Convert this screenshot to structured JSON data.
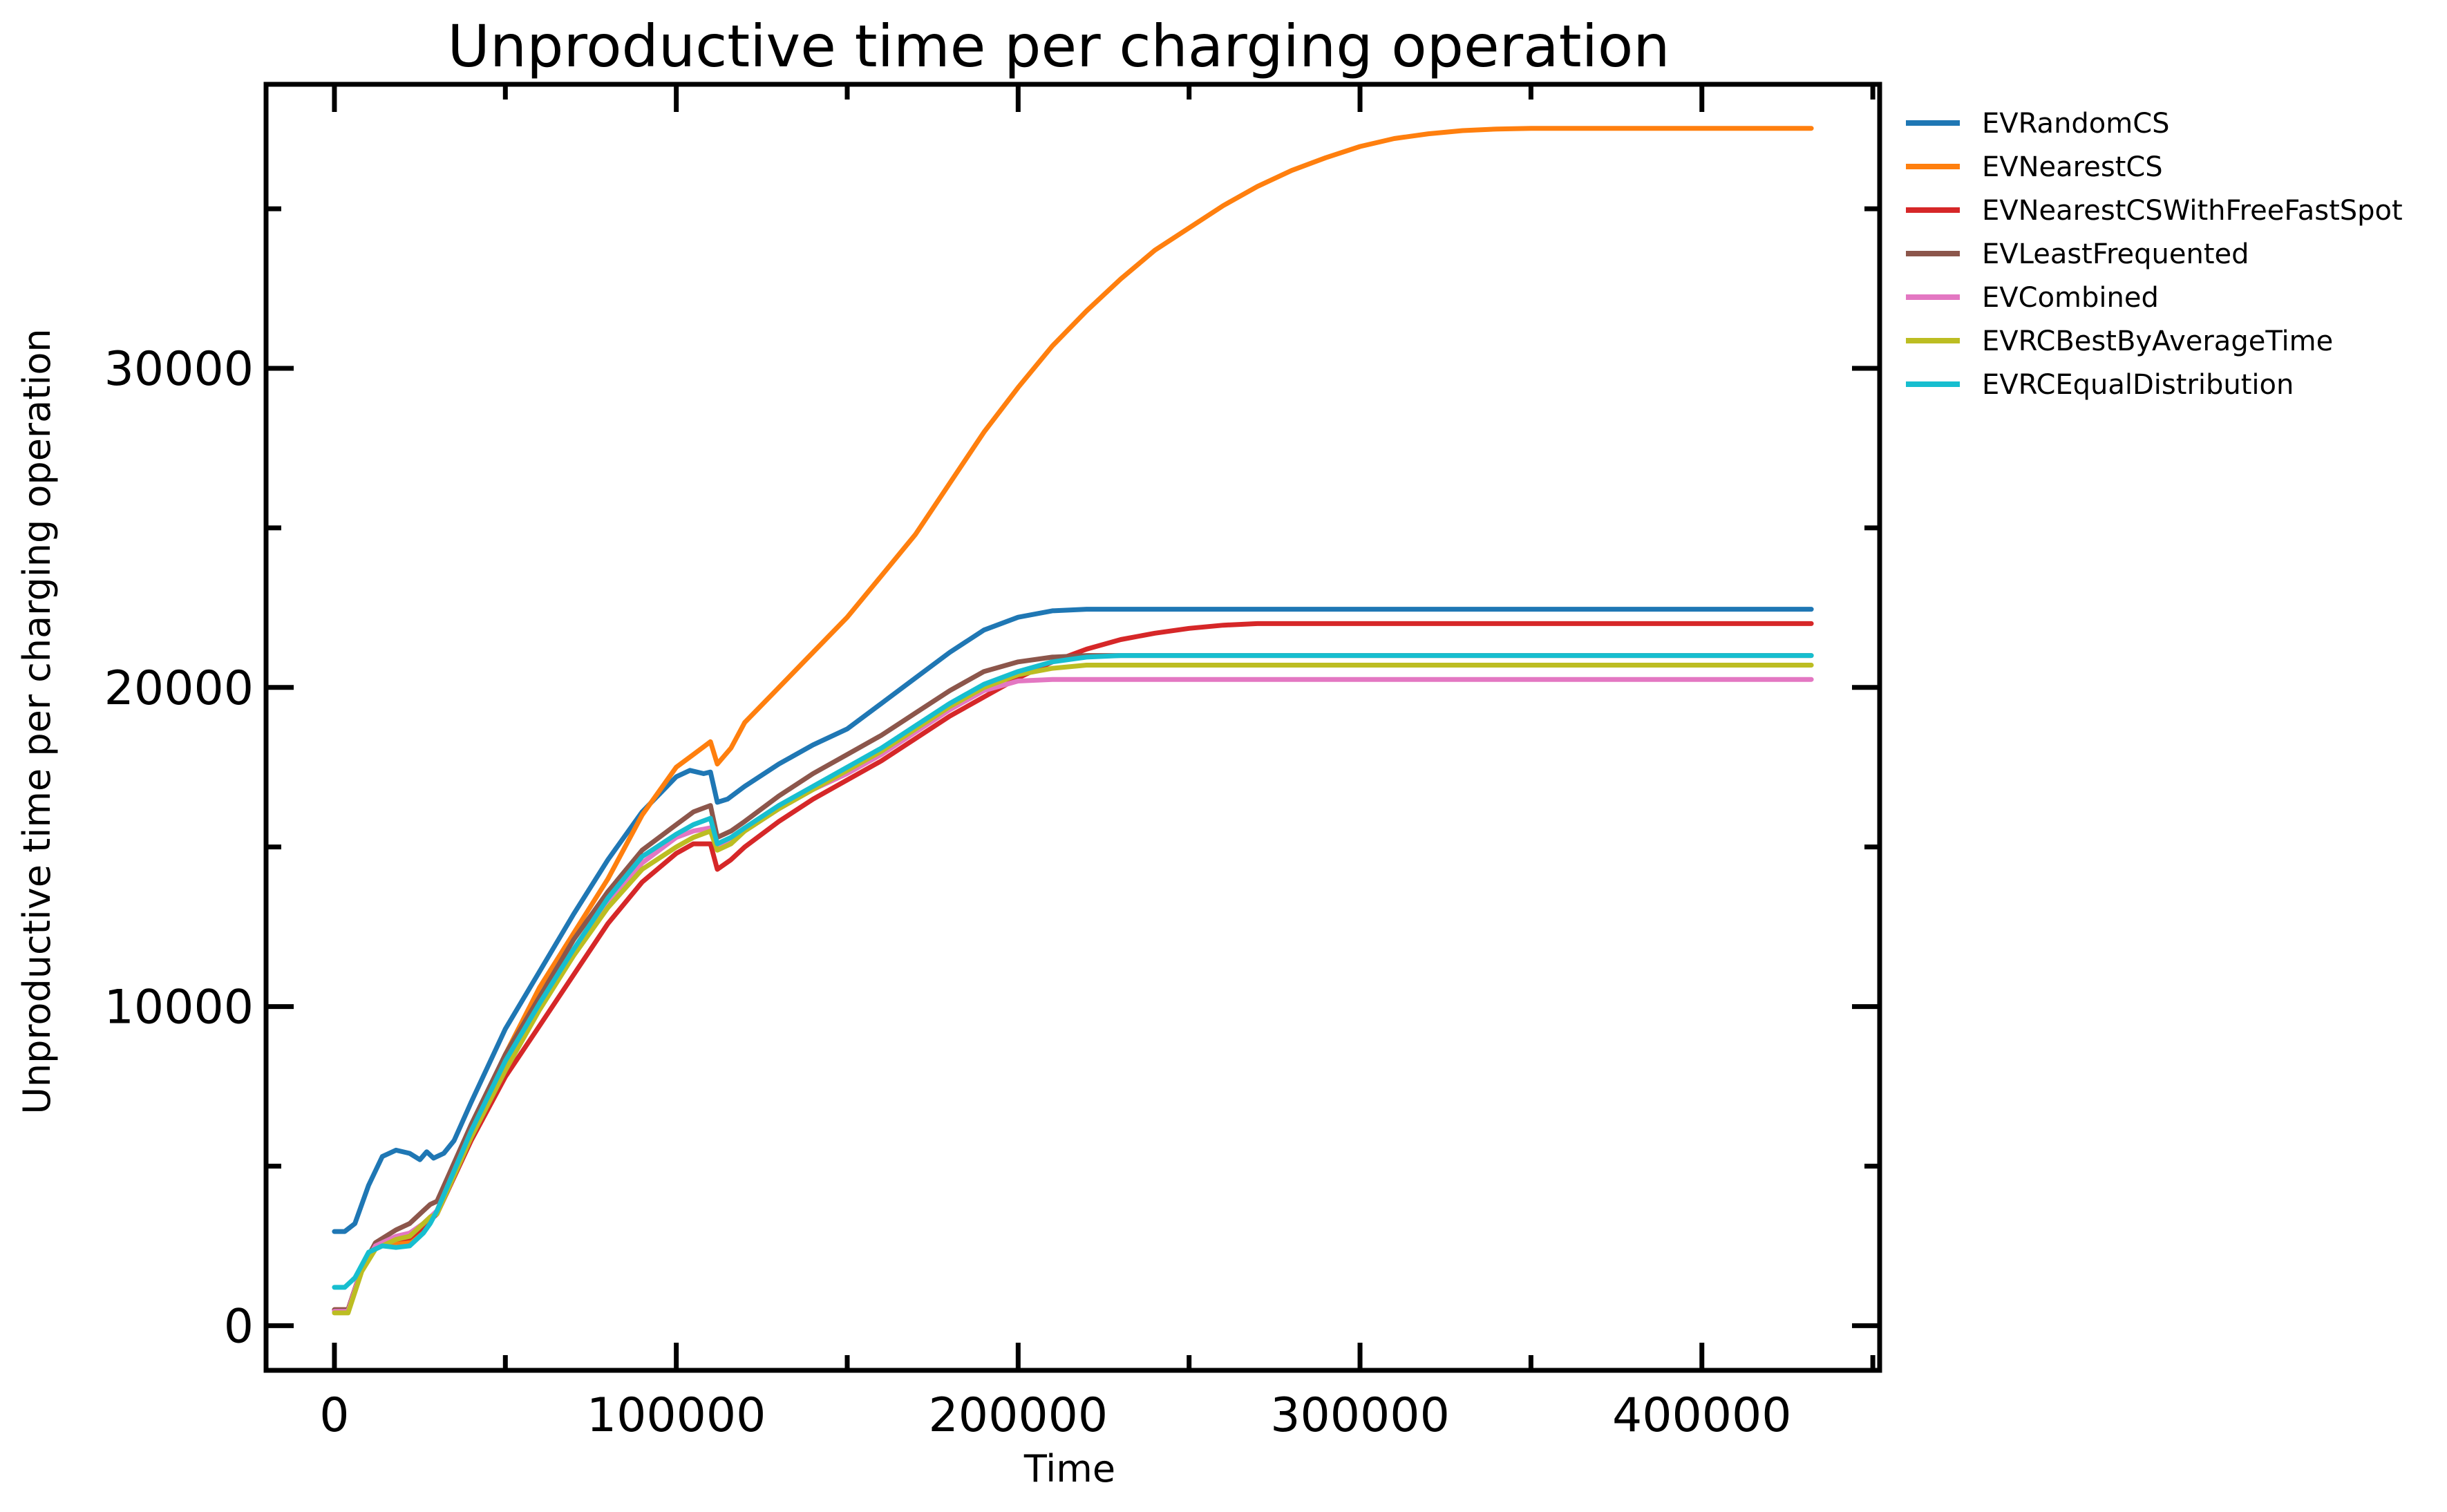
{
  "chart_data": {
    "type": "line",
    "title": "Unproductive time per charging operation",
    "xlabel": "Time",
    "ylabel": "Unproductive time per charging operation",
    "xlim": [
      -20000,
      452000
    ],
    "ylim": [
      -1400,
      38900
    ],
    "xticks": [
      0,
      100000,
      200000,
      300000,
      400000
    ],
    "xtick_labels": [
      "0",
      "100000",
      "200000",
      "300000",
      "400000"
    ],
    "x_minor_ticks": [
      50000,
      150000,
      250000,
      350000,
      450000
    ],
    "yticks": [
      0,
      10000,
      20000,
      30000
    ],
    "ytick_labels": [
      "0",
      "10000",
      "20000",
      "30000"
    ],
    "y_minor_ticks": [
      5000,
      15000,
      25000,
      35000
    ],
    "grid": false,
    "legend_position": "outside-right-top",
    "series": [
      {
        "name": "EVRandomCS",
        "color": "#1f77b4",
        "points": [
          [
            0,
            2950
          ],
          [
            3000,
            2950
          ],
          [
            6000,
            3200
          ],
          [
            10000,
            4400
          ],
          [
            14000,
            5300
          ],
          [
            18000,
            5500
          ],
          [
            22000,
            5400
          ],
          [
            25000,
            5200
          ],
          [
            27000,
            5450
          ],
          [
            29000,
            5250
          ],
          [
            32000,
            5400
          ],
          [
            35000,
            5800
          ],
          [
            40000,
            7000
          ],
          [
            50000,
            9300
          ],
          [
            60000,
            11100
          ],
          [
            70000,
            12900
          ],
          [
            80000,
            14600
          ],
          [
            90000,
            16100
          ],
          [
            100000,
            17200
          ],
          [
            104000,
            17400
          ],
          [
            108000,
            17300
          ],
          [
            110000,
            17350
          ],
          [
            112000,
            16400
          ],
          [
            115000,
            16500
          ],
          [
            120000,
            16900
          ],
          [
            130000,
            17600
          ],
          [
            140000,
            18200
          ],
          [
            150000,
            18700
          ],
          [
            160000,
            19500
          ],
          [
            170000,
            20300
          ],
          [
            180000,
            21100
          ],
          [
            190000,
            21800
          ],
          [
            200000,
            22200
          ],
          [
            210000,
            22400
          ],
          [
            220000,
            22450
          ],
          [
            300000,
            22450
          ],
          [
            432000,
            22450
          ]
        ]
      },
      {
        "name": "EVNearestCS",
        "color": "#ff7f0e",
        "points": [
          [
            0,
            500
          ],
          [
            4000,
            500
          ],
          [
            8000,
            1800
          ],
          [
            12000,
            2500
          ],
          [
            18000,
            2600
          ],
          [
            22000,
            2600
          ],
          [
            26000,
            3000
          ],
          [
            28000,
            3300
          ],
          [
            30000,
            3600
          ],
          [
            40000,
            6200
          ],
          [
            50000,
            8500
          ],
          [
            60000,
            10600
          ],
          [
            70000,
            12300
          ],
          [
            80000,
            14000
          ],
          [
            90000,
            16000
          ],
          [
            100000,
            17500
          ],
          [
            105000,
            17900
          ],
          [
            110000,
            18300
          ],
          [
            112000,
            17600
          ],
          [
            116000,
            18100
          ],
          [
            120000,
            18900
          ],
          [
            130000,
            20000
          ],
          [
            140000,
            21100
          ],
          [
            150000,
            22200
          ],
          [
            160000,
            23500
          ],
          [
            170000,
            24800
          ],
          [
            180000,
            26400
          ],
          [
            190000,
            28000
          ],
          [
            200000,
            29400
          ],
          [
            210000,
            30700
          ],
          [
            220000,
            31800
          ],
          [
            230000,
            32800
          ],
          [
            240000,
            33700
          ],
          [
            250000,
            34400
          ],
          [
            260000,
            35100
          ],
          [
            270000,
            35700
          ],
          [
            280000,
            36200
          ],
          [
            290000,
            36600
          ],
          [
            300000,
            36950
          ],
          [
            310000,
            37200
          ],
          [
            320000,
            37350
          ],
          [
            330000,
            37450
          ],
          [
            340000,
            37500
          ],
          [
            350000,
            37520
          ],
          [
            360000,
            37520
          ],
          [
            432000,
            37520
          ]
        ]
      },
      {
        "name": "EVNearestCSWithFreeFastSpot",
        "color": "#d62728",
        "points": [
          [
            0,
            500
          ],
          [
            4000,
            500
          ],
          [
            8000,
            1800
          ],
          [
            12000,
            2500
          ],
          [
            18000,
            2700
          ],
          [
            22000,
            2750
          ],
          [
            26000,
            3100
          ],
          [
            28000,
            3300
          ],
          [
            30000,
            3500
          ],
          [
            40000,
            5800
          ],
          [
            50000,
            7800
          ],
          [
            60000,
            9400
          ],
          [
            70000,
            11000
          ],
          [
            80000,
            12600
          ],
          [
            90000,
            13900
          ],
          [
            100000,
            14800
          ],
          [
            105000,
            15100
          ],
          [
            110000,
            15100
          ],
          [
            112000,
            14300
          ],
          [
            116000,
            14600
          ],
          [
            120000,
            15000
          ],
          [
            130000,
            15800
          ],
          [
            140000,
            16500
          ],
          [
            150000,
            17100
          ],
          [
            160000,
            17700
          ],
          [
            170000,
            18400
          ],
          [
            180000,
            19100
          ],
          [
            190000,
            19700
          ],
          [
            200000,
            20300
          ],
          [
            210000,
            20800
          ],
          [
            220000,
            21200
          ],
          [
            230000,
            21500
          ],
          [
            240000,
            21700
          ],
          [
            250000,
            21850
          ],
          [
            260000,
            21950
          ],
          [
            270000,
            22000
          ],
          [
            280000,
            22000
          ],
          [
            432000,
            22000
          ]
        ]
      },
      {
        "name": "EVLeastFrequented",
        "color": "#8c564b",
        "points": [
          [
            0,
            500
          ],
          [
            4000,
            500
          ],
          [
            8000,
            1800
          ],
          [
            12000,
            2600
          ],
          [
            18000,
            3000
          ],
          [
            22000,
            3200
          ],
          [
            26000,
            3600
          ],
          [
            28000,
            3800
          ],
          [
            30000,
            3900
          ],
          [
            40000,
            6300
          ],
          [
            50000,
            8500
          ],
          [
            60000,
            10300
          ],
          [
            70000,
            12100
          ],
          [
            80000,
            13600
          ],
          [
            90000,
            14900
          ],
          [
            100000,
            15700
          ],
          [
            105000,
            16100
          ],
          [
            110000,
            16300
          ],
          [
            112000,
            15300
          ],
          [
            116000,
            15500
          ],
          [
            120000,
            15800
          ],
          [
            130000,
            16600
          ],
          [
            140000,
            17300
          ],
          [
            150000,
            17900
          ],
          [
            160000,
            18500
          ],
          [
            170000,
            19200
          ],
          [
            180000,
            19900
          ],
          [
            190000,
            20500
          ],
          [
            200000,
            20800
          ],
          [
            210000,
            20950
          ],
          [
            220000,
            21000
          ],
          [
            300000,
            21000
          ],
          [
            432000,
            21000
          ]
        ]
      },
      {
        "name": "EVCombined",
        "color": "#e377c2",
        "points": [
          [
            0,
            450
          ],
          [
            4000,
            450
          ],
          [
            8000,
            1800
          ],
          [
            12000,
            2500
          ],
          [
            18000,
            2800
          ],
          [
            22000,
            2900
          ],
          [
            26000,
            3200
          ],
          [
            28000,
            3400
          ],
          [
            30000,
            3600
          ],
          [
            40000,
            6100
          ],
          [
            50000,
            8200
          ],
          [
            60000,
            10000
          ],
          [
            70000,
            11700
          ],
          [
            80000,
            13200
          ],
          [
            90000,
            14500
          ],
          [
            100000,
            15300
          ],
          [
            105000,
            15500
          ],
          [
            110000,
            15600
          ],
          [
            112000,
            15000
          ],
          [
            116000,
            15200
          ],
          [
            120000,
            15500
          ],
          [
            130000,
            16200
          ],
          [
            140000,
            16800
          ],
          [
            150000,
            17300
          ],
          [
            160000,
            17900
          ],
          [
            170000,
            18600
          ],
          [
            180000,
            19300
          ],
          [
            190000,
            19900
          ],
          [
            200000,
            20200
          ],
          [
            210000,
            20250
          ],
          [
            300000,
            20250
          ],
          [
            432000,
            20250
          ]
        ]
      },
      {
        "name": "EVRCBestByAverageTime",
        "color": "#bcbd22",
        "points": [
          [
            0,
            400
          ],
          [
            4000,
            400
          ],
          [
            8000,
            1700
          ],
          [
            12000,
            2400
          ],
          [
            18000,
            2700
          ],
          [
            22000,
            2800
          ],
          [
            26000,
            3200
          ],
          [
            28000,
            3400
          ],
          [
            30000,
            3500
          ],
          [
            40000,
            5900
          ],
          [
            50000,
            8000
          ],
          [
            60000,
            9900
          ],
          [
            70000,
            11600
          ],
          [
            80000,
            13100
          ],
          [
            90000,
            14300
          ],
          [
            100000,
            15000
          ],
          [
            105000,
            15300
          ],
          [
            110000,
            15500
          ],
          [
            112000,
            14900
          ],
          [
            116000,
            15100
          ],
          [
            120000,
            15500
          ],
          [
            130000,
            16200
          ],
          [
            140000,
            16800
          ],
          [
            150000,
            17400
          ],
          [
            160000,
            18000
          ],
          [
            170000,
            18700
          ],
          [
            180000,
            19400
          ],
          [
            190000,
            20000
          ],
          [
            200000,
            20400
          ],
          [
            210000,
            20600
          ],
          [
            220000,
            20700
          ],
          [
            300000,
            20700
          ],
          [
            432000,
            20700
          ]
        ]
      },
      {
        "name": "EVRCEqualDistribution",
        "color": "#17becf",
        "points": [
          [
            0,
            1200
          ],
          [
            3000,
            1200
          ],
          [
            6000,
            1500
          ],
          [
            10000,
            2300
          ],
          [
            14000,
            2500
          ],
          [
            18000,
            2450
          ],
          [
            22000,
            2500
          ],
          [
            26000,
            2900
          ],
          [
            28000,
            3200
          ],
          [
            30000,
            3600
          ],
          [
            40000,
            6100
          ],
          [
            50000,
            8300
          ],
          [
            60000,
            10100
          ],
          [
            70000,
            11800
          ],
          [
            80000,
            13400
          ],
          [
            90000,
            14700
          ],
          [
            100000,
            15400
          ],
          [
            105000,
            15700
          ],
          [
            110000,
            15900
          ],
          [
            112000,
            15100
          ],
          [
            116000,
            15300
          ],
          [
            120000,
            15600
          ],
          [
            130000,
            16300
          ],
          [
            140000,
            16900
          ],
          [
            150000,
            17500
          ],
          [
            160000,
            18100
          ],
          [
            170000,
            18800
          ],
          [
            180000,
            19500
          ],
          [
            190000,
            20100
          ],
          [
            200000,
            20500
          ],
          [
            210000,
            20800
          ],
          [
            220000,
            20950
          ],
          [
            230000,
            21000
          ],
          [
            300000,
            21000
          ],
          [
            432000,
            21000
          ]
        ]
      }
    ]
  }
}
